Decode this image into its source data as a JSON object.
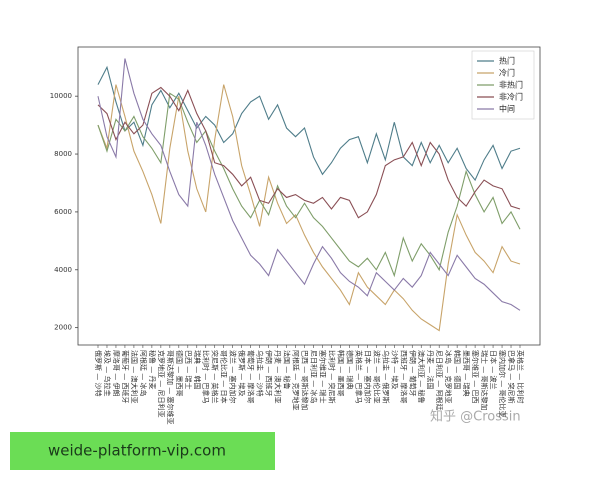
{
  "chart_data": {
    "type": "line",
    "categories": [
      "俄罗斯 — 沙特",
      "埃及 — 乌拉圭",
      "摩洛哥 — 伊朗",
      "葡萄牙 — 西班牙",
      "法国 — 澳大利亚",
      "阿根廷 — 冰岛",
      "秘鲁 — 丹麦",
      "克罗地亚 — 尼日利亚",
      "哥斯达黎加 — 塞尔维亚",
      "德国 — 墨西哥",
      "巴西 — 瑞士",
      "瑞典 — 韩国",
      "比利时 — 巴拿马",
      "突尼斯 — 英格兰",
      "哥伦比亚 — 日本",
      "波兰 — 塞内加尔",
      "俄罗斯 — 埃及",
      "葡萄牙 — 摩洛哥",
      "乌拉圭 — 沙特",
      "伊朗 — 西班牙",
      "丹麦 — 澳大利亚",
      "法国 — 秘鲁",
      "阿根廷 — 克罗地亚",
      "巴西 — 哥斯达黎加",
      "尼日利亚 — 冰岛",
      "塞尔维亚 — 瑞士",
      "比利时 — 突尼斯",
      "韩国 — 墨西哥",
      "德国 — 瑞典",
      "英格兰 — 巴拿马",
      "日本 — 塞内加尔",
      "波兰 — 哥伦比亚",
      "乌拉圭 — 俄罗斯",
      "沙特 — 埃及",
      "西班牙 — 摩洛哥",
      "伊朗 — 葡萄牙",
      "澳大利亚 — 秘鲁",
      "丹麦 — 法国",
      "尼日利亚 — 阿根廷",
      "冰岛 — 克罗地亚",
      "韩国 — 德国",
      "墨西哥 — 瑞典",
      "塞尔维亚 — 巴西",
      "瑞士 — 哥斯达黎加",
      "日本 — 波兰",
      "塞内加尔 — 哥伦比亚",
      "巴拿马 — 突尼斯",
      "英格兰 — 比利时"
    ],
    "series": [
      {
        "name": "热门",
        "color": "#4f7d8a",
        "values": [
          10400,
          11000,
          9800,
          8800,
          9100,
          8300,
          9700,
          10200,
          9600,
          10100,
          9500,
          8900,
          9300,
          9000,
          8400,
          8700,
          9400,
          9800,
          10000,
          9200,
          9700,
          8900,
          8600,
          8900,
          7900,
          7300,
          7700,
          8200,
          8500,
          8600,
          7700,
          8700,
          7800,
          9100,
          7900,
          7600,
          8400,
          7700,
          8300,
          7700,
          8200,
          7500,
          7100,
          7800,
          8300,
          7500,
          8100,
          8200
        ]
      },
      {
        "name": "冷门",
        "color": "#c8a46a",
        "values": [
          9000,
          8200,
          10400,
          9300,
          8100,
          7400,
          6600,
          5600,
          8200,
          10000,
          8100,
          6800,
          6000,
          8500,
          10400,
          9300,
          7600,
          6600,
          5500,
          7200,
          6300,
          5600,
          5900,
          5200,
          4600,
          4100,
          3700,
          3300,
          2800,
          3900,
          3400,
          3100,
          2800,
          3300,
          3000,
          2600,
          2300,
          2100,
          1900,
          4200,
          5900,
          5200,
          4600,
          4300,
          3900,
          4800,
          4300,
          4200
        ]
      },
      {
        "name": "非热门",
        "color": "#7f9e6a",
        "values": [
          9000,
          8100,
          9200,
          8800,
          9300,
          8600,
          8200,
          7700,
          10100,
          9900,
          9100,
          8400,
          8800,
          8100,
          7500,
          6800,
          6200,
          5800,
          6400,
          5900,
          6900,
          6200,
          5800,
          6300,
          5800,
          5500,
          5100,
          4700,
          4300,
          4100,
          4400,
          4000,
          4600,
          3800,
          5100,
          4300,
          4900,
          4500,
          4000,
          5300,
          6200,
          7400,
          6600,
          6000,
          6500,
          5600,
          6000,
          5400
        ]
      },
      {
        "name": "非冷门",
        "color": "#8a4f55",
        "values": [
          9700,
          9400,
          8500,
          9100,
          8700,
          9000,
          10100,
          10300,
          10000,
          9500,
          10200,
          9400,
          8800,
          7700,
          7600,
          7300,
          6900,
          7200,
          6400,
          6300,
          6800,
          6500,
          6600,
          6400,
          6300,
          6500,
          6100,
          6500,
          6400,
          5800,
          6000,
          6600,
          7600,
          7800,
          7900,
          8400,
          7600,
          8400,
          8000,
          7100,
          6500,
          6200,
          6700,
          7100,
          6900,
          6800,
          6200,
          6100
        ]
      },
      {
        "name": "中间",
        "color": "#8a7aa8",
        "values": [
          10000,
          8600,
          7900,
          11300,
          10100,
          9200,
          8700,
          8300,
          7400,
          6600,
          6200,
          9100,
          8300,
          7300,
          6500,
          5700,
          5100,
          4500,
          4200,
          3800,
          4700,
          4300,
          3900,
          3500,
          4200,
          4800,
          4400,
          3900,
          3600,
          3400,
          3100,
          3900,
          3600,
          3300,
          3700,
          3400,
          3800,
          4600,
          4200,
          3800,
          4500,
          4100,
          3700,
          3500,
          3200,
          2900,
          2800,
          2600
        ]
      }
    ],
    "ylim": [
      1400,
      11700
    ],
    "yticks": [
      2000,
      4000,
      6000,
      8000,
      10000
    ],
    "legend": "upper right"
  },
  "watermark": "知乎 @Crossin",
  "banner": "weide-platform-vip.com"
}
